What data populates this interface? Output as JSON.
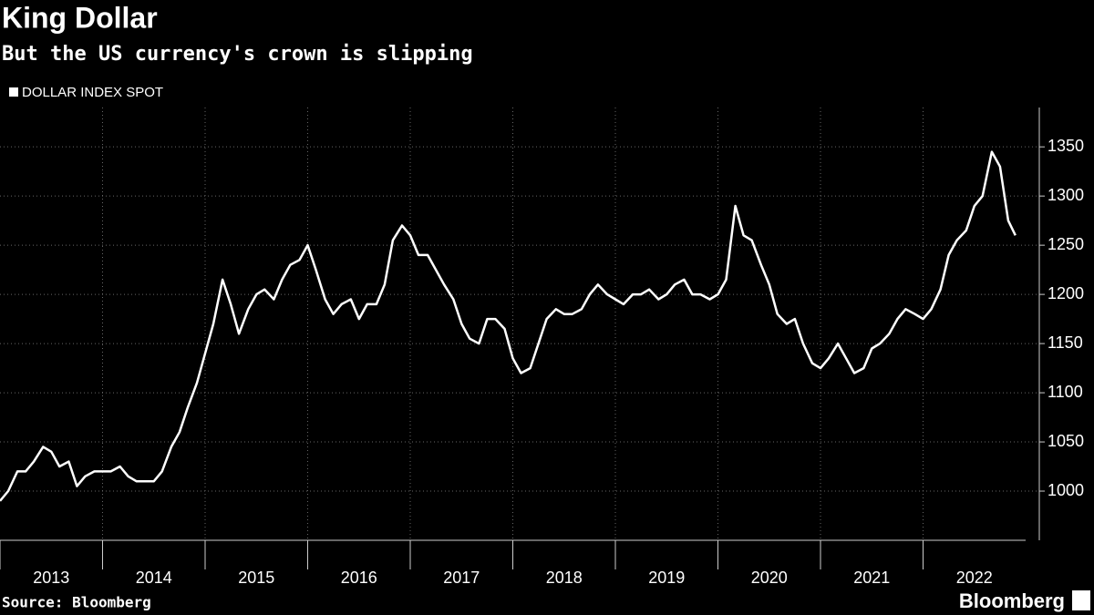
{
  "chart_data": {
    "type": "line",
    "title": "King Dollar",
    "subtitle": "But the US currency's crown is slipping",
    "source": "Source: Bloomberg",
    "brand": "Bloomberg",
    "x": [
      2013,
      2013.08,
      2013.17,
      2013.25,
      2013.33,
      2013.42,
      2013.5,
      2013.58,
      2013.67,
      2013.75,
      2013.83,
      2013.92,
      2014,
      2014.08,
      2014.17,
      2014.25,
      2014.33,
      2014.42,
      2014.5,
      2014.58,
      2014.67,
      2014.75,
      2014.83,
      2014.92,
      2015,
      2015.08,
      2015.17,
      2015.25,
      2015.33,
      2015.42,
      2015.5,
      2015.58,
      2015.67,
      2015.75,
      2015.83,
      2015.92,
      2016,
      2016.08,
      2016.17,
      2016.25,
      2016.33,
      2016.42,
      2016.5,
      2016.58,
      2016.67,
      2016.75,
      2016.83,
      2016.92,
      2017,
      2017.08,
      2017.17,
      2017.25,
      2017.33,
      2017.42,
      2017.5,
      2017.58,
      2017.67,
      2017.75,
      2017.83,
      2017.92,
      2018,
      2018.08,
      2018.17,
      2018.25,
      2018.33,
      2018.42,
      2018.5,
      2018.58,
      2018.67,
      2018.75,
      2018.83,
      2018.92,
      2019,
      2019.08,
      2019.17,
      2019.25,
      2019.33,
      2019.42,
      2019.5,
      2019.58,
      2019.67,
      2019.75,
      2019.83,
      2019.92,
      2020,
      2020.08,
      2020.17,
      2020.25,
      2020.33,
      2020.42,
      2020.5,
      2020.58,
      2020.67,
      2020.75,
      2020.83,
      2020.92,
      2021,
      2021.08,
      2021.17,
      2021.25,
      2021.33,
      2021.42,
      2021.5,
      2021.58,
      2021.67,
      2021.75,
      2021.83,
      2021.92,
      2022,
      2022.08,
      2022.17,
      2022.25,
      2022.33,
      2022.42,
      2022.5,
      2022.58,
      2022.67,
      2022.75,
      2022.83,
      2022.9
    ],
    "series": [
      {
        "name": "DOLLAR INDEX SPOT",
        "color": "#ffffff",
        "values": [
          990,
          1000,
          1020,
          1020,
          1030,
          1045,
          1040,
          1025,
          1030,
          1005,
          1015,
          1020,
          1020,
          1020,
          1025,
          1015,
          1010,
          1010,
          1010,
          1020,
          1045,
          1060,
          1085,
          1110,
          1140,
          1170,
          1215,
          1190,
          1160,
          1185,
          1200,
          1205,
          1195,
          1215,
          1230,
          1235,
          1250,
          1225,
          1195,
          1180,
          1190,
          1195,
          1175,
          1190,
          1190,
          1210,
          1255,
          1270,
          1260,
          1240,
          1240,
          1225,
          1210,
          1195,
          1170,
          1155,
          1150,
          1175,
          1175,
          1165,
          1135,
          1120,
          1125,
          1150,
          1175,
          1185,
          1180,
          1180,
          1185,
          1200,
          1210,
          1200,
          1195,
          1190,
          1200,
          1200,
          1205,
          1195,
          1200,
          1210,
          1215,
          1200,
          1200,
          1195,
          1200,
          1215,
          1290,
          1260,
          1255,
          1230,
          1210,
          1180,
          1170,
          1175,
          1150,
          1130,
          1125,
          1135,
          1150,
          1135,
          1120,
          1125,
          1145,
          1150,
          1160,
          1175,
          1185,
          1180,
          1175,
          1185,
          1205,
          1240,
          1255,
          1265,
          1290,
          1300,
          1345,
          1330,
          1275,
          1260
        ]
      }
    ],
    "xlim": [
      2013,
      2023
    ],
    "xticks": [
      2013,
      2014,
      2015,
      2016,
      2017,
      2018,
      2019,
      2020,
      2021,
      2022
    ],
    "ylim": [
      950,
      1390
    ],
    "yticks": [
      1000,
      1050,
      1100,
      1150,
      1200,
      1250,
      1300,
      1350
    ],
    "grid": true
  }
}
